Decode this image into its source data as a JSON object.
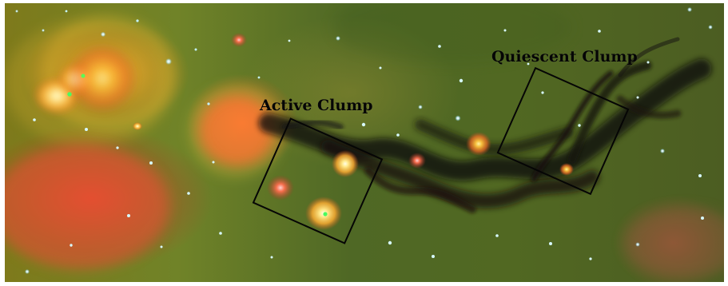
{
  "figure": {
    "labels": {
      "active": "Active Clump",
      "quiescent": "Quiescent Clump"
    },
    "colors": {
      "box_border": "#050505",
      "label_text": "#050505",
      "nebula_orange": "#ff9f2f",
      "nebula_red": "#e84a33",
      "dark_filament": "#12100d",
      "star_blue": "#b8f0ff"
    }
  }
}
